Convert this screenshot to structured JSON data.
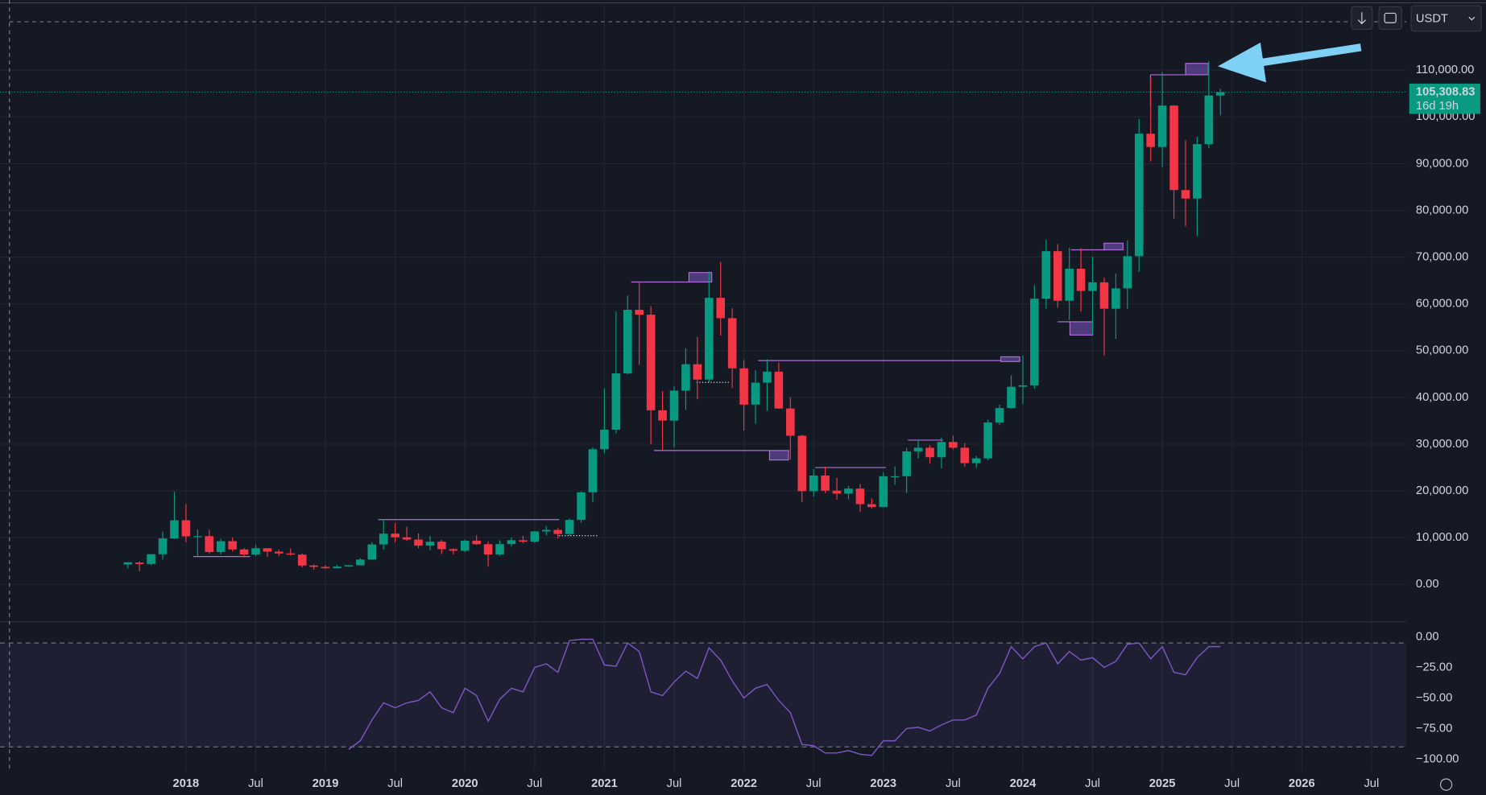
{
  "chart_data": [
    {
      "type": "candlestick",
      "x": [
        "2017-08",
        "2017-09",
        "2017-10",
        "2017-11",
        "2017-12",
        "2018-01",
        "2018-02",
        "2018-03",
        "2018-04",
        "2018-05",
        "2018-06",
        "2018-07",
        "2018-08",
        "2018-09",
        "2018-10",
        "2018-11",
        "2018-12",
        "2019-01",
        "2019-02",
        "2019-03",
        "2019-04",
        "2019-05",
        "2019-06",
        "2019-07",
        "2019-08",
        "2019-09",
        "2019-10",
        "2019-11",
        "2019-12",
        "2020-01",
        "2020-02",
        "2020-03",
        "2020-04",
        "2020-05",
        "2020-06",
        "2020-07",
        "2020-08",
        "2020-09",
        "2020-10",
        "2020-11",
        "2020-12",
        "2021-01",
        "2021-02",
        "2021-03",
        "2021-04",
        "2021-05",
        "2021-06",
        "2021-07",
        "2021-08",
        "2021-09",
        "2021-10",
        "2021-11",
        "2021-12",
        "2022-01",
        "2022-02",
        "2022-03",
        "2022-04",
        "2022-05",
        "2022-06",
        "2022-07",
        "2022-08",
        "2022-09",
        "2022-10",
        "2022-11",
        "2022-12",
        "2023-01",
        "2023-02",
        "2023-03",
        "2023-04",
        "2023-05",
        "2023-06",
        "2023-07",
        "2023-08",
        "2023-09",
        "2023-10",
        "2023-11",
        "2023-12",
        "2024-01",
        "2024-02",
        "2024-03",
        "2024-04",
        "2024-05",
        "2024-06",
        "2024-07",
        "2024-08",
        "2024-09",
        "2024-10",
        "2024-11",
        "2024-12",
        "2025-01",
        "2025-02",
        "2025-03",
        "2025-04",
        "2025-05",
        "2025-06"
      ],
      "open": [
        4261,
        4689,
        4378,
        6463,
        9838,
        13716,
        10285,
        10326,
        6923,
        9246,
        7485,
        6391,
        7735,
        7011,
        6626,
        6369,
        4041,
        3742,
        3458,
        3813,
        4102,
        5321,
        8555,
        10854,
        10086,
        9591,
        8289,
        9140,
        7541,
        7195,
        9351,
        8599,
        6412,
        8620,
        9448,
        9138,
        11335,
        11649,
        10776,
        13791,
        19695,
        28923,
        33092,
        45134,
        58739,
        57697,
        37254,
        35045,
        41461,
        47100,
        43820,
        61300,
        56950,
        46217,
        38466,
        43160,
        45510,
        37631,
        31801,
        19942,
        23296,
        20048,
        19422,
        20490,
        17165,
        16541,
        23125,
        23141,
        28466,
        29233,
        27210,
        30472,
        29232,
        25941,
        26962,
        34640,
        37723,
        42283,
        42580,
        61131,
        71280,
        60672,
        67540,
        62772,
        64628,
        58974,
        63328,
        70216,
        96408,
        93576,
        102429,
        84350,
        82550,
        94172,
        104591
      ],
      "high": [
        4745,
        4939,
        6470,
        11300,
        19798,
        17176,
        11786,
        11690,
        9759,
        10020,
        7786,
        8507,
        7750,
        7410,
        7680,
        6615,
        4313,
        4140,
        4198,
        4140,
        5600,
        9074,
        13970,
        13147,
        12325,
        10905,
        10370,
        9529,
        7750,
        9578,
        10500,
        9188,
        9460,
        10067,
        10380,
        11444,
        12468,
        12050,
        14100,
        19863,
        29300,
        41950,
        58352,
        61788,
        64854,
        59500,
        41330,
        42448,
        50500,
        52920,
        67000,
        69000,
        59053,
        47990,
        45821,
        48190,
        47444,
        40023,
        31986,
        24668,
        25212,
        22800,
        21085,
        21480,
        18387,
        23960,
        25250,
        29184,
        31000,
        29820,
        31431,
        31804,
        30244,
        27483,
        35280,
        38450,
        44700,
        48970,
        64000,
        73777,
        72797,
        71979,
        71950,
        70080,
        65660,
        66498,
        73620,
        99588,
        108353,
        109588,
        102500,
        95000,
        95758,
        111980,
        106000
      ],
      "low": [
        3400,
        2817,
        4110,
        5325,
        9722,
        9035,
        6000,
        6600,
        6430,
        7032,
        5750,
        6070,
        5880,
        6111,
        6200,
        3652,
        3156,
        3349,
        3400,
        3760,
        4067,
        5316,
        7444,
        9010,
        9320,
        7710,
        7300,
        6515,
        6435,
        6871,
        8445,
        3782,
        6150,
        8117,
        8833,
        8893,
        10518,
        9825,
        10374,
        13195,
        17572,
        28130,
        32296,
        44950,
        47000,
        30000,
        28805,
        29278,
        37332,
        39600,
        43283,
        53256,
        42000,
        32917,
        34322,
        37155,
        37578,
        26700,
        17622,
        18781,
        19520,
        18125,
        18190,
        15476,
        16256,
        16499,
        21351,
        19549,
        26942,
        25811,
        24800,
        28861,
        25166,
        24901,
        26538,
        34097,
        37629,
        38555,
        41884,
        59005,
        59191,
        56552,
        58402,
        53485,
        49000,
        52550,
        58946,
        66835,
        90500,
        89256,
        78258,
        76606,
        74509,
        93322,
        100372
      ],
      "close": [
        4724,
        4378,
        6463,
        9838,
        13716,
        10285,
        10326,
        6923,
        9246,
        7485,
        6391,
        7730,
        7011,
        6626,
        6371,
        4041,
        3742,
        3458,
        3813,
        4103,
        5321,
        8555,
        10854,
        10086,
        9591,
        8289,
        9141,
        7541,
        7195,
        9352,
        8599,
        6410,
        8620,
        9448,
        9138,
        11335,
        11649,
        10776,
        13791,
        19695,
        28923,
        33092,
        45135,
        58740,
        57694,
        37253,
        35045,
        41461,
        47100,
        43824,
        61299,
        56950,
        46216,
        38466,
        43160,
        45510,
        37630,
        31801,
        19942,
        23293,
        20050,
        19423,
        20490,
        17164,
        16542,
        23125,
        23141,
        28465,
        29233,
        27211,
        30472,
        29232,
        25941,
        26962,
        34640,
        37723,
        42283,
        42580,
        61130,
        71280,
        60672,
        67540,
        62772,
        64628,
        58974,
        63328,
        70215,
        96408,
        93576,
        102429,
        84350,
        82550,
        94172,
        104591,
        105308.83
      ],
      "up_color": "#089981",
      "down_color": "#f23645",
      "xlim": [
        "2016-09",
        "2026-10"
      ],
      "xticks": [
        {
          "value": "2018-01",
          "label": "2018"
        },
        {
          "value": "2018-07",
          "label": "Jul"
        },
        {
          "value": "2019-01",
          "label": "2019"
        },
        {
          "value": "2019-07",
          "label": "Jul"
        },
        {
          "value": "2020-01",
          "label": "2020"
        },
        {
          "value": "2020-07",
          "label": "Jul"
        },
        {
          "value": "2021-01",
          "label": "2021"
        },
        {
          "value": "2021-07",
          "label": "Jul"
        },
        {
          "value": "2022-01",
          "label": "2022"
        },
        {
          "value": "2022-07",
          "label": "Jul"
        },
        {
          "value": "2023-01",
          "label": "2023"
        },
        {
          "value": "2023-07",
          "label": "Jul"
        },
        {
          "value": "2024-01",
          "label": "2024"
        },
        {
          "value": "2024-07",
          "label": "Jul"
        },
        {
          "value": "2025-01",
          "label": "2025"
        },
        {
          "value": "2025-07",
          "label": "Jul"
        },
        {
          "value": "2026-01",
          "label": "2026"
        },
        {
          "value": "2026-07",
          "label": "Jul"
        }
      ],
      "ylim": [
        -8000,
        124000
      ],
      "yticks": [
        {
          "value": 0,
          "label": "0.00"
        },
        {
          "value": 10000,
          "label": "10,000.00"
        },
        {
          "value": 20000,
          "label": "20,000.00"
        },
        {
          "value": 30000,
          "label": "30,000.00"
        },
        {
          "value": 40000,
          "label": "40,000.00"
        },
        {
          "value": 50000,
          "label": "50,000.00"
        },
        {
          "value": 60000,
          "label": "60,000.00"
        },
        {
          "value": 70000,
          "label": "70,000.00"
        },
        {
          "value": 80000,
          "label": "80,000.00"
        },
        {
          "value": 90000,
          "label": "90,000.00"
        },
        {
          "value": 100000,
          "label": "100,000.00"
        },
        {
          "value": 110000,
          "label": "110,000.00"
        }
      ],
      "grid": true,
      "last_price": {
        "value": 105308.83,
        "label": "105,308.83"
      },
      "countdown": "16d 19h",
      "currency": "USDT"
    },
    {
      "type": "line",
      "x": [
        "2019-03",
        "2019-04",
        "2019-05",
        "2019-06",
        "2019-07",
        "2019-08",
        "2019-09",
        "2019-10",
        "2019-11",
        "2019-12",
        "2020-01",
        "2020-02",
        "2020-03",
        "2020-04",
        "2020-05",
        "2020-06",
        "2020-07",
        "2020-08",
        "2020-09",
        "2020-10",
        "2020-11",
        "2020-12",
        "2021-01",
        "2021-02",
        "2021-03",
        "2021-04",
        "2021-05",
        "2021-06",
        "2021-07",
        "2021-08",
        "2021-09",
        "2021-10",
        "2021-11",
        "2021-12",
        "2022-01",
        "2022-02",
        "2022-03",
        "2022-04",
        "2022-05",
        "2022-06",
        "2022-07",
        "2022-08",
        "2022-09",
        "2022-10",
        "2022-11",
        "2022-12",
        "2023-01",
        "2023-02",
        "2023-03",
        "2023-04",
        "2023-05",
        "2023-06",
        "2023-07",
        "2023-08",
        "2023-09",
        "2023-10",
        "2023-11",
        "2023-12",
        "2024-01",
        "2024-02",
        "2024-03",
        "2024-04",
        "2024-05",
        "2024-06",
        "2024-07",
        "2024-08",
        "2024-09",
        "2024-10",
        "2024-11",
        "2024-12",
        "2025-01",
        "2025-02",
        "2025-03",
        "2025-04",
        "2025-05",
        "2025-06"
      ],
      "values": [
        -92,
        -85,
        -68,
        -54,
        -58,
        -54,
        -52,
        -45,
        -58,
        -62,
        -42,
        -48,
        -69,
        -51,
        -42,
        -45,
        -25,
        -22,
        -29,
        -3,
        -2,
        -2,
        -23,
        -24,
        -5,
        -12,
        -45,
        -48,
        -37,
        -28,
        -34,
        -9,
        -19,
        -36,
        -50,
        -42,
        -39,
        -52,
        -62,
        -88,
        -89,
        -95,
        -95,
        -93,
        -96,
        -97,
        -85,
        -85,
        -75,
        -74,
        -77,
        -72,
        -68,
        -68,
        -64,
        -42,
        -30,
        -8,
        -18,
        -8,
        -5,
        -22,
        -12,
        -19,
        -17,
        -25,
        -20,
        -6,
        -5,
        -18,
        -8,
        -29,
        -31,
        -17,
        -8,
        -8
      ],
      "color": "#7e57c2",
      "ylim": [
        -110,
        10
      ],
      "yticks": [
        {
          "value": 0,
          "label": "0.00"
        },
        {
          "value": -25,
          "label": "−25.00"
        },
        {
          "value": -50,
          "label": "−50.00"
        },
        {
          "value": -75,
          "label": "−75.00"
        },
        {
          "value": -100,
          "label": "−100.00"
        }
      ],
      "bands": [
        -5,
        -90
      ]
    }
  ]
}
